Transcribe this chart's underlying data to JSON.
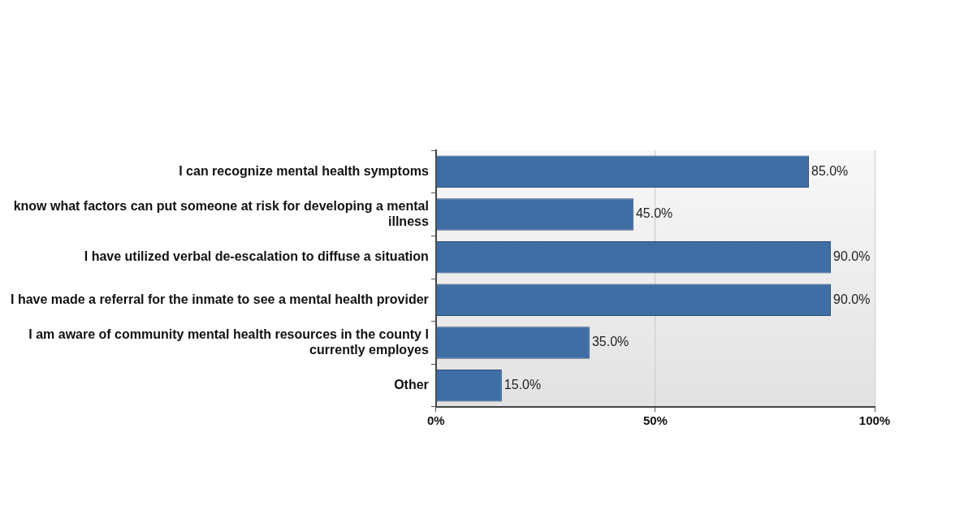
{
  "chart_data": {
    "type": "bar",
    "orientation": "horizontal",
    "categories": [
      "I can recognize mental health symptoms",
      "know what factors can put someone at risk for developing a mental illness",
      "I have utilized verbal de-escalation to diffuse a situation",
      "I have made a referral for the inmate to see a mental health provider",
      "I am aware of community mental health resources in the county I currently employes",
      "Other"
    ],
    "values": [
      85.0,
      45.0,
      90.0,
      90.0,
      35.0,
      15.0
    ],
    "value_labels": [
      "85.0%",
      "45.0%",
      "90.0%",
      "90.0%",
      "35.0%",
      "15.0%"
    ],
    "color": "#3f6ea5",
    "xlim": [
      0,
      100
    ],
    "xticks": [
      {
        "value": 0,
        "label": "0%"
      },
      {
        "value": 50,
        "label": "50%"
      },
      {
        "value": 100,
        "label": "100%"
      }
    ],
    "grid": "x",
    "legend": false
  }
}
